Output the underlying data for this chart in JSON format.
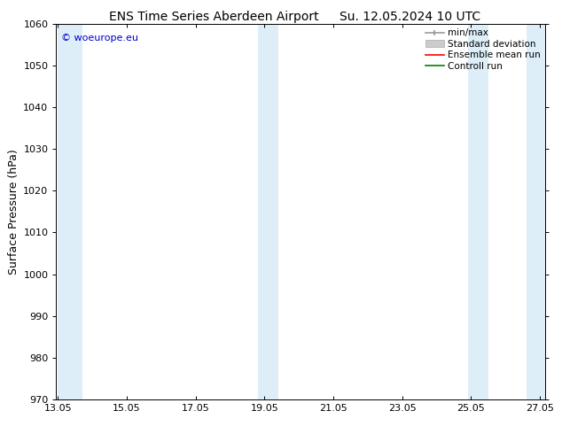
{
  "title": "ENS Time Series Aberdeen Airport",
  "title2": "Su. 12.05.2024 10 UTC",
  "ylabel": "Surface Pressure (hPa)",
  "ylim": [
    970,
    1060
  ],
  "yticks": [
    970,
    980,
    990,
    1000,
    1010,
    1020,
    1030,
    1040,
    1050,
    1060
  ],
  "xlim_start": 13.0,
  "xlim_end": 27.2,
  "xtick_positions": [
    13.05,
    15.05,
    17.05,
    19.05,
    21.05,
    23.05,
    25.05,
    27.05
  ],
  "xtick_labels": [
    "13.05",
    "15.05",
    "17.05",
    "19.05",
    "21.05",
    "23.05",
    "25.05",
    "27.05"
  ],
  "bg_color": "#ffffff",
  "plot_bg_color": "#ffffff",
  "shaded_bands": [
    {
      "x_start": 13.05,
      "x_end": 13.75,
      "color": "#ddeef8"
    },
    {
      "x_start": 18.85,
      "x_end": 19.45,
      "color": "#ddeef8"
    },
    {
      "x_start": 24.95,
      "x_end": 25.55,
      "color": "#ddeef8"
    },
    {
      "x_start": 26.65,
      "x_end": 27.2,
      "color": "#ddeef8"
    }
  ],
  "copyright_text": "© woeurope.eu",
  "copyright_color": "#0000cc",
  "legend_items": [
    {
      "label": "min/max",
      "color": "#999999",
      "lw": 1.2
    },
    {
      "label": "Standard deviation",
      "color": "#cccccc",
      "lw": 5
    },
    {
      "label": "Ensemble mean run",
      "color": "#ff0000",
      "lw": 1.2
    },
    {
      "label": "Controll run",
      "color": "#008000",
      "lw": 1.2
    }
  ],
  "title_fontsize": 10,
  "axis_label_fontsize": 9,
  "tick_fontsize": 8,
  "legend_fontsize": 7.5,
  "copyright_fontsize": 8
}
